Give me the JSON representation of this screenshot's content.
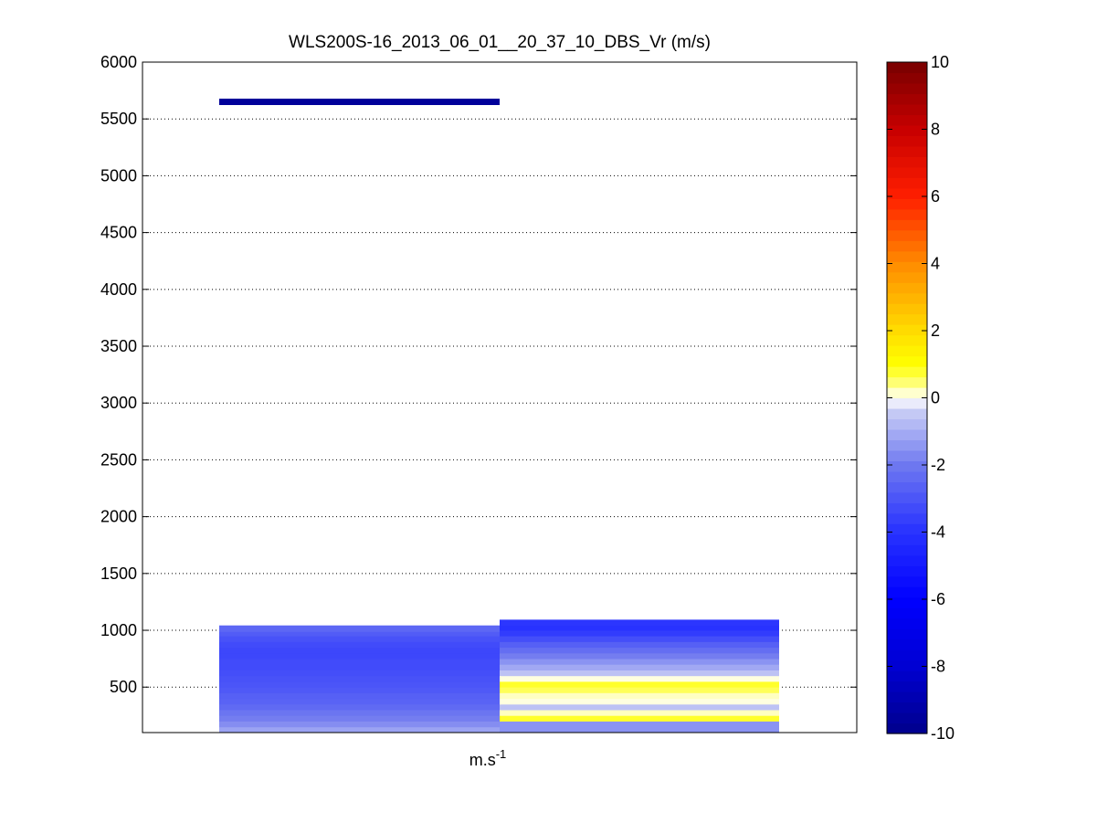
{
  "chart_data": {
    "type": "heatmap",
    "title": "WLS200S-16_2013_06_01__20_37_10_DBS_Vr (m/s)",
    "xlabel_base": "m.s",
    "xlabel_exp": "-1",
    "ylabel": "",
    "ylim": [
      100,
      6000
    ],
    "yticks": [
      "500",
      "1000",
      "1500",
      "2000",
      "2500",
      "3000",
      "3500",
      "4000",
      "4500",
      "5000",
      "5500",
      "6000"
    ],
    "ytick_values": [
      500,
      1000,
      1500,
      2000,
      2500,
      3000,
      3500,
      4000,
      4500,
      5000,
      5500,
      6000
    ],
    "grid": "horizontal dotted",
    "colorbar": {
      "clim": [
        -10,
        10
      ],
      "ticks": [
        "-10",
        "-8",
        "-6",
        "-4",
        "-2",
        "0",
        "2",
        "4",
        "6",
        "8",
        "10"
      ],
      "tick_values": [
        -10,
        -8,
        -6,
        -4,
        -2,
        0,
        2,
        4,
        6,
        8,
        10
      ],
      "colormap": "blue-white-yellow-red"
    },
    "columns": [
      {
        "cells": [
          {
            "alt": 125,
            "v": -1.2
          },
          {
            "alt": 175,
            "v": -1.6
          },
          {
            "alt": 225,
            "v": -1.9
          },
          {
            "alt": 275,
            "v": -2.1
          },
          {
            "alt": 325,
            "v": -2.4
          },
          {
            "alt": 375,
            "v": -2.6
          },
          {
            "alt": 425,
            "v": -2.7
          },
          {
            "alt": 475,
            "v": -2.9
          },
          {
            "alt": 525,
            "v": -3.0
          },
          {
            "alt": 575,
            "v": -3.1
          },
          {
            "alt": 625,
            "v": -3.2
          },
          {
            "alt": 675,
            "v": -3.3
          },
          {
            "alt": 725,
            "v": -3.3
          },
          {
            "alt": 775,
            "v": -3.4
          },
          {
            "alt": 825,
            "v": -3.4
          },
          {
            "alt": 875,
            "v": -3.3
          },
          {
            "alt": 925,
            "v": -3.1
          },
          {
            "alt": 975,
            "v": -2.8
          },
          {
            "alt": 1015,
            "v": -2.5
          },
          {
            "alt": 5650,
            "v": -9.6
          }
        ]
      },
      {
        "cells": [
          {
            "alt": 125,
            "v": -1.5
          },
          {
            "alt": 175,
            "v": -1.5
          },
          {
            "alt": 225,
            "v": 0.8
          },
          {
            "alt": 275,
            "v": 0.2
          },
          {
            "alt": 325,
            "v": -0.6
          },
          {
            "alt": 375,
            "v": 0.1
          },
          {
            "alt": 425,
            "v": 0.2
          },
          {
            "alt": 475,
            "v": 0.6
          },
          {
            "alt": 525,
            "v": 0.8
          },
          {
            "alt": 575,
            "v": 0.1
          },
          {
            "alt": 625,
            "v": -0.6
          },
          {
            "alt": 675,
            "v": -1.1
          },
          {
            "alt": 725,
            "v": -1.5
          },
          {
            "alt": 775,
            "v": -1.9
          },
          {
            "alt": 825,
            "v": -2.3
          },
          {
            "alt": 875,
            "v": -2.7
          },
          {
            "alt": 925,
            "v": -3.2
          },
          {
            "alt": 975,
            "v": -3.7
          },
          {
            "alt": 1025,
            "v": -4.0
          },
          {
            "alt": 1065,
            "v": -3.9
          }
        ]
      }
    ]
  }
}
